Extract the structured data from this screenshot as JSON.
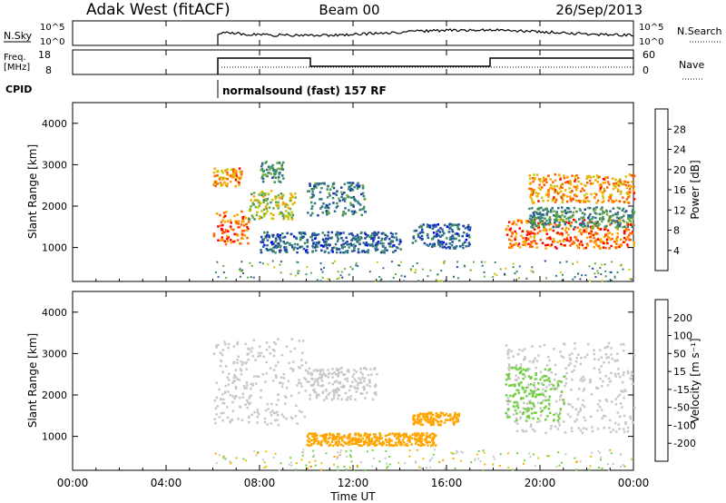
{
  "header": {
    "station": "Adak West (fitACF)",
    "beam": "Beam 00",
    "date": "26/Sep/2013"
  },
  "top_panels": {
    "nsky_label": "N.Sky",
    "nsearch_label": "N.Search",
    "nsky_ticks": [
      "10^5",
      "10^0"
    ],
    "nsearch_ticks": [
      "10^5",
      "10^0"
    ],
    "freq_label": "Freq.",
    "freq_unit": "[MHz]",
    "freq_ticks": [
      "18",
      "8"
    ],
    "nave_label": "Nave",
    "nave_ticks": [
      "60",
      "0"
    ],
    "cpid_label": "CPID",
    "cpid_text": "normalsound (fast) 157 RF"
  },
  "panels": {
    "power": {
      "ylabel": "Slant Range [km]",
      "yticks": [
        "4000",
        "3000",
        "2000",
        "1000"
      ],
      "colorbar_label": "Power [dB]",
      "colorbar_ticks": [
        "28",
        "24",
        "20",
        "16",
        "12",
        "8",
        "4"
      ]
    },
    "velocity": {
      "ylabel": "Slant Range [km]",
      "yticks": [
        "4000",
        "3000",
        "2000",
        "1000"
      ],
      "colorbar_label": "Velocity [m s⁻¹]",
      "colorbar_ticks": [
        "200",
        "100",
        "50",
        "15",
        "-15",
        "-50",
        "-100",
        "-200"
      ]
    }
  },
  "xaxis": {
    "label": "Time UT",
    "ticks": [
      "00:00",
      "04:00",
      "08:00",
      "12:00",
      "16:00",
      "20:00",
      "00:00"
    ]
  },
  "colors": {
    "power_scale": [
      "#0000ff",
      "#1c3fa8",
      "#2e6e8e",
      "#3f8f5f",
      "#6fae3c",
      "#c8c800",
      "#ffa500",
      "#ff6000",
      "#ff0000"
    ],
    "velocity_scale": [
      "#ff0000",
      "#ff6a00",
      "#ffa500",
      "#e6c000",
      "#c8c8c8",
      "#c8c8c8",
      "#70d040",
      "#2f8f4f",
      "#2030a0",
      "#0000ff"
    ]
  },
  "chart_data": [
    {
      "type": "heatmap",
      "title": "Power",
      "x_range": [
        "00:00",
        "24:00"
      ],
      "y_range_km": [
        180,
        4500
      ],
      "data_start": "06:00",
      "regions": [
        {
          "t_start": 6.0,
          "t_end": 7.5,
          "r_start": 1100,
          "r_end": 1900,
          "value_db": 26
        },
        {
          "t_start": 6.0,
          "t_end": 7.2,
          "r_start": 2500,
          "r_end": 2950,
          "value_db": 24
        },
        {
          "t_start": 7.5,
          "t_end": 9.5,
          "r_start": 1700,
          "r_end": 2400,
          "value_db": 18
        },
        {
          "t_start": 8.0,
          "t_end": 9.0,
          "r_start": 2600,
          "r_end": 3100,
          "value_db": 12
        },
        {
          "t_start": 8.0,
          "t_end": 14.0,
          "r_start": 900,
          "r_end": 1400,
          "value_db": 8
        },
        {
          "t_start": 10.0,
          "t_end": 12.5,
          "r_start": 1800,
          "r_end": 2600,
          "value_db": 10
        },
        {
          "t_start": 14.5,
          "t_end": 17.0,
          "r_start": 1000,
          "r_end": 1600,
          "value_db": 8
        },
        {
          "t_start": 18.5,
          "t_end": 24.0,
          "r_start": 1000,
          "r_end": 1700,
          "value_db": 26
        },
        {
          "t_start": 19.5,
          "t_end": 24.0,
          "r_start": 2100,
          "r_end": 2800,
          "value_db": 24
        },
        {
          "t_start": 19.5,
          "t_end": 24.0,
          "r_start": 1500,
          "r_end": 2000,
          "value_db": 12
        }
      ]
    },
    {
      "type": "heatmap",
      "title": "Velocity",
      "x_range": [
        "00:00",
        "24:00"
      ],
      "y_range_km": [
        180,
        4500
      ],
      "data_start": "06:00",
      "regions": [
        {
          "t_start": 6.0,
          "t_end": 10.0,
          "r_start": 1300,
          "r_end": 3400,
          "value_ms": 0
        },
        {
          "t_start": 10.0,
          "t_end": 13.0,
          "r_start": 1900,
          "r_end": 2700,
          "value_ms": 0
        },
        {
          "t_start": 10.0,
          "t_end": 15.5,
          "r_start": 800,
          "r_end": 1100,
          "value_ms": -50
        },
        {
          "t_start": 14.5,
          "t_end": 16.5,
          "r_start": 1300,
          "r_end": 1600,
          "value_ms": -50
        },
        {
          "t_start": 18.5,
          "t_end": 24.0,
          "r_start": 1100,
          "r_end": 3300,
          "value_ms": 0
        },
        {
          "t_start": 18.5,
          "t_end": 21.0,
          "r_start": 1400,
          "r_end": 2700,
          "value_ms": 30
        }
      ]
    }
  ]
}
